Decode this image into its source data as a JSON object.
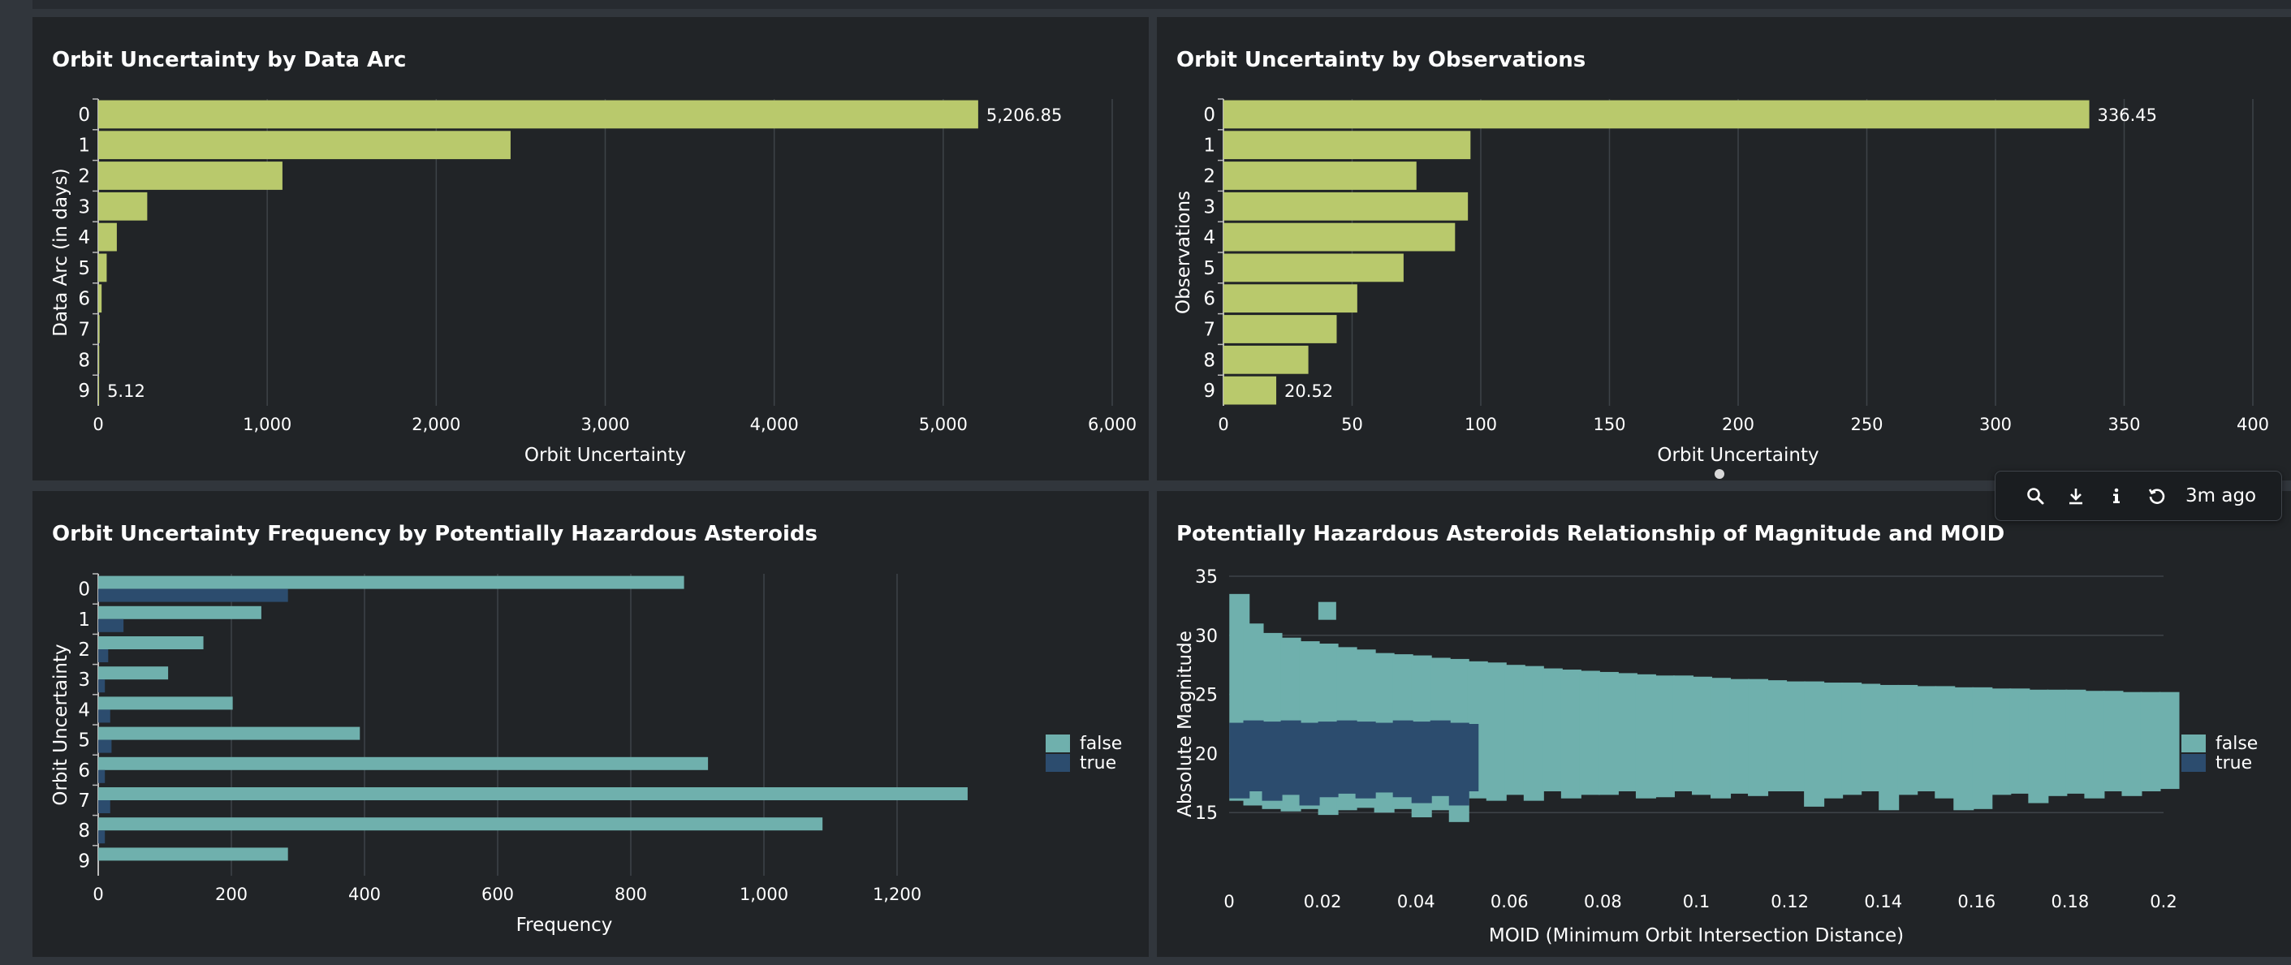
{
  "panels": {
    "p1": {
      "title": "Orbit Uncertainty by Data Arc"
    },
    "p2": {
      "title": "Orbit Uncertainty by Observations"
    },
    "p3": {
      "title": "Orbit Uncertainty Frequency by Potentially Hazardous Asteroids"
    },
    "p4": {
      "title": "Potentially Hazardous Asteroids Relationship of Magnitude and MOID"
    }
  },
  "toolbar": {
    "time_label": "3m ago",
    "icons": [
      "search-icon",
      "download-icon",
      "info-icon",
      "refresh-icon"
    ]
  },
  "colors": {
    "bar": "#b9c96c",
    "false": "#6fb0ad",
    "true": "#2c4c6e",
    "background": "#212427"
  },
  "chart_data": [
    {
      "type": "bar",
      "orientation": "horizontal",
      "categories": [
        "0",
        "1",
        "2",
        "3",
        "4",
        "5",
        "6",
        "7",
        "8",
        "9"
      ],
      "values": [
        5206.85,
        2440,
        1090,
        290,
        110,
        50,
        20,
        8,
        6,
        5.12
      ],
      "data_labels": [
        "5,206.85",
        "",
        "",
        "",
        "",
        "",
        "",
        "",
        "",
        "5.12"
      ],
      "xlabel": "Orbit Uncertainty",
      "ylabel": "Data Arc (in days)",
      "xlim": [
        0,
        6000
      ],
      "xticks": [
        0,
        1000,
        2000,
        3000,
        4000,
        5000,
        6000
      ],
      "xtick_labels": [
        "0",
        "1,000",
        "2,000",
        "3,000",
        "4,000",
        "5,000",
        "6,000"
      ],
      "grid": true
    },
    {
      "type": "bar",
      "orientation": "horizontal",
      "categories": [
        "0",
        "1",
        "2",
        "3",
        "4",
        "5",
        "6",
        "7",
        "8",
        "9"
      ],
      "values": [
        336.45,
        96,
        75,
        95,
        90,
        70,
        52,
        44,
        33,
        20.52
      ],
      "data_labels": [
        "336.45",
        "",
        "",
        "",
        "",
        "",
        "",
        "",
        "",
        "20.52"
      ],
      "xlabel": "Orbit Uncertainty",
      "ylabel": "Observations",
      "xlim": [
        0,
        400
      ],
      "xticks": [
        0,
        50,
        100,
        150,
        200,
        250,
        300,
        350,
        400
      ],
      "xtick_labels": [
        "0",
        "50",
        "100",
        "150",
        "200",
        "250",
        "300",
        "350",
        "400"
      ],
      "grid": true
    },
    {
      "type": "bar",
      "orientation": "horizontal",
      "categories": [
        "0",
        "1",
        "2",
        "3",
        "4",
        "5",
        "6",
        "7",
        "8",
        "9"
      ],
      "series": [
        {
          "name": "false",
          "values": [
            880,
            245,
            158,
            105,
            202,
            393,
            916,
            1306,
            1088,
            285
          ]
        },
        {
          "name": "true",
          "values": [
            285,
            38,
            15,
            10,
            18,
            20,
            10,
            18,
            10,
            0
          ]
        }
      ],
      "xlabel": "Frequency",
      "ylabel": "Orbit Uncertainty",
      "xlim": [
        0,
        1400
      ],
      "xticks": [
        0,
        200,
        400,
        600,
        800,
        1000,
        1200
      ],
      "xtick_labels": [
        "0",
        "200",
        "400",
        "600",
        "800",
        "1,000",
        "1,200"
      ],
      "legend": "right",
      "grid": true
    },
    {
      "type": "scatter",
      "xlabel": "MOID (Minimum Orbit Intersection Distance)",
      "ylabel": "Absolute Magnitude",
      "xlim": [
        0,
        0.2
      ],
      "ylim": [
        10,
        35
      ],
      "xticks": [
        0,
        0.02,
        0.04,
        0.06,
        0.08,
        0.1,
        0.12,
        0.14,
        0.16,
        0.18,
        0.2
      ],
      "xtick_labels": [
        "0",
        "0.02",
        "0.04",
        "0.06",
        "0.08",
        "0.1",
        "0.12",
        "0.14",
        "0.16",
        "0.18",
        "0.2"
      ],
      "yticks": [
        15,
        20,
        25,
        30,
        35
      ],
      "ytick_labels": [
        "15",
        "20",
        "25",
        "30",
        "35"
      ],
      "legend": "right",
      "grid": true,
      "series": [
        {
          "name": "false",
          "x": [
            0.001,
            0.004,
            0.008,
            0.012,
            0.016,
            0.02,
            0.024,
            0.028,
            0.032,
            0.036,
            0.04,
            0.044,
            0.048,
            0.052,
            0.056,
            0.06,
            0.064,
            0.068,
            0.072,
            0.076,
            0.08,
            0.084,
            0.088,
            0.092,
            0.096,
            0.1,
            0.104,
            0.108,
            0.112,
            0.116,
            0.12,
            0.124,
            0.128,
            0.132,
            0.136,
            0.14,
            0.144,
            0.148,
            0.152,
            0.156,
            0.16,
            0.164,
            0.168,
            0.172,
            0.176,
            0.18,
            0.184,
            0.188,
            0.192,
            0.196,
            0.2
          ],
          "y_high": [
            33.5,
            31,
            30.2,
            29.8,
            29.5,
            29.3,
            29,
            28.8,
            28.5,
            28.4,
            28.3,
            28.1,
            28,
            27.8,
            27.7,
            27.5,
            27.4,
            27.2,
            27.1,
            27,
            26.9,
            26.8,
            26.7,
            26.6,
            26.6,
            26.5,
            26.4,
            26.3,
            26.3,
            26.2,
            26.1,
            26.1,
            26,
            26,
            25.9,
            25.8,
            25.8,
            25.7,
            25.7,
            25.6,
            25.6,
            25.5,
            25.5,
            25.4,
            25.4,
            25.4,
            25.3,
            25.3,
            25.2,
            25.2,
            25.2
          ],
          "y_low": [
            16,
            15.6,
            15.3,
            15.1,
            15.3,
            14.8,
            15.2,
            15.4,
            15,
            15.3,
            14.6,
            15.2,
            14.2,
            16.2,
            16,
            16.5,
            16,
            16.8,
            16.2,
            16.5,
            16.5,
            16.8,
            16.2,
            16.3,
            16.8,
            16.5,
            16.2,
            16.6,
            16.4,
            16.8,
            16.8,
            15.5,
            16.2,
            16.5,
            16.8,
            15.2,
            16.5,
            16.8,
            16.2,
            15.2,
            15.3,
            16.5,
            16.6,
            15.8,
            16.4,
            16.6,
            16.2,
            16.8,
            16.4,
            16.8,
            17
          ]
        },
        {
          "name": "true",
          "x": [
            0.001,
            0.004,
            0.008,
            0.012,
            0.016,
            0.02,
            0.024,
            0.028,
            0.032,
            0.036,
            0.04,
            0.044,
            0.048,
            0.05
          ],
          "y_high": [
            22.6,
            22.8,
            22.7,
            22.8,
            22.6,
            22.7,
            22.8,
            22.7,
            22.6,
            22.8,
            22.7,
            22.8,
            22.6,
            22.5
          ],
          "y_low": [
            16.2,
            16.8,
            16,
            16.5,
            15.6,
            16.3,
            16.6,
            16.2,
            16.7,
            16.3,
            15.8,
            16.4,
            15.6,
            16.8
          ]
        }
      ],
      "outliers": [
        {
          "series": "false",
          "x": 0.021,
          "y": 32
        }
      ]
    }
  ]
}
